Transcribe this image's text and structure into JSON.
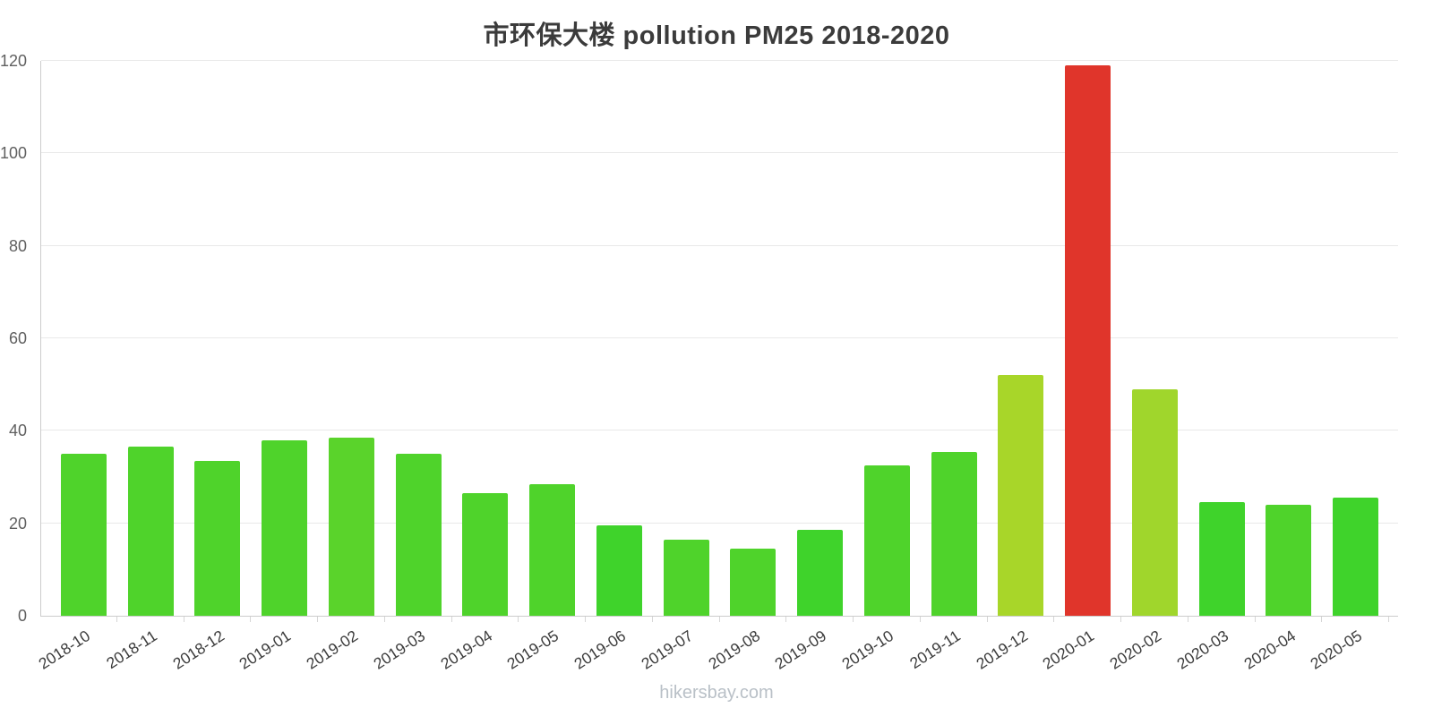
{
  "chart_data": {
    "type": "bar",
    "title": "市环保大楼 pollution PM25 2018-2020",
    "categories": [
      "2018-10",
      "2018-11",
      "2018-12",
      "2019-01",
      "2019-02",
      "2019-03",
      "2019-04",
      "2019-05",
      "2019-06",
      "2019-07",
      "2019-08",
      "2019-09",
      "2019-10",
      "2019-11",
      "2019-12",
      "2020-01",
      "2020-02",
      "2020-03",
      "2020-04",
      "2020-05"
    ],
    "values": [
      35,
      36.5,
      33.5,
      38,
      38.5,
      35,
      26.5,
      28.5,
      19.5,
      16.5,
      14.5,
      18.5,
      32.5,
      35.5,
      52,
      119,
      49,
      24.5,
      24,
      25.5
    ],
    "bar_colors": [
      "#4fd32b",
      "#4fd32b",
      "#4fd32b",
      "#4fd32b",
      "#5ad32b",
      "#4fd32b",
      "#4fd32b",
      "#4fd32b",
      "#3fd32b",
      "#4fd32b",
      "#4fd32b",
      "#3fd32b",
      "#4fd32b",
      "#4fd32b",
      "#a8d629",
      "#e0352b",
      "#a0d62c",
      "#3fd32b",
      "#4fd32b",
      "#3fd32b"
    ],
    "xlabel": "",
    "ylabel": "",
    "ylim": [
      0,
      120
    ],
    "yticks": [
      0,
      20,
      40,
      60,
      80,
      100,
      120
    ],
    "grid": true,
    "legend": false
  },
  "footer": {
    "watermark": "hikersbay.com"
  },
  "colors": {
    "bar_green": "#4fd32b",
    "bar_yellow_green": "#a8d629",
    "bar_red": "#e0352b",
    "gridline": "#e9e9e9",
    "axis": "#cccccc",
    "y_tick_label": "#5f5f5f",
    "x_tick_label": "#3c3c3c",
    "title": "#3b3b3b",
    "watermark": "#b9c0c7"
  }
}
